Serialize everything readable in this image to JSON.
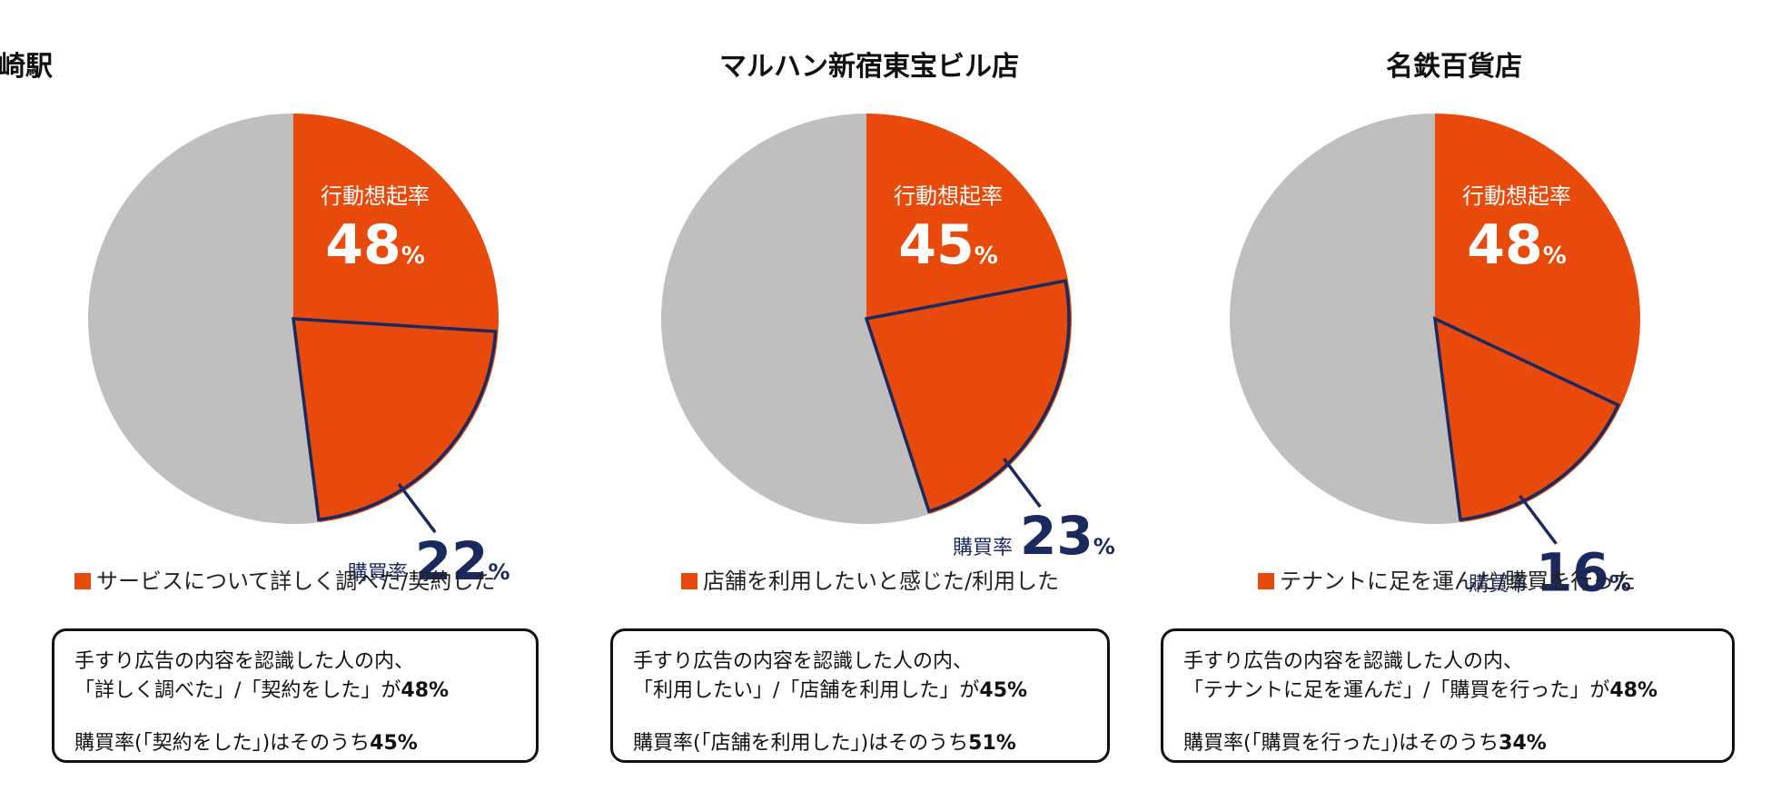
{
  "chart_data": [
    {
      "type": "pie",
      "title": "高崎駅",
      "action_rate_label": "行動想起率",
      "action_rate": 48,
      "purchase_rate_label": "購買率",
      "purchase_rate": 22,
      "unit": "%",
      "legend": "サービスについて詳しく調べた/契約した",
      "note_line1": "手すり広告の内容を認識した人の内、",
      "note_line2": "「詳しく調べた」/「契約をした」が",
      "note_value2": "48%",
      "note_line3": "購買率(「契約をした」)はそのうち",
      "note_value3": "45%"
    },
    {
      "type": "pie",
      "title": "マルハン新宿東宝ビル店",
      "action_rate_label": "行動想起率",
      "action_rate": 45,
      "purchase_rate_label": "購買率",
      "purchase_rate": 23,
      "unit": "%",
      "legend": "店舗を利用したいと感じた/利用した",
      "note_line1": "手すり広告の内容を認識した人の内、",
      "note_line2": "「利用したい」/「店舗を利用した」が",
      "note_value2": "45%",
      "note_line3": "購買率(「店舗を利用した」)はそのうち",
      "note_value3": "51%"
    },
    {
      "type": "pie",
      "title": "名鉄百貨店",
      "action_rate_label": "行動想起率",
      "action_rate": 48,
      "purchase_rate_label": "購買率",
      "purchase_rate": 16,
      "unit": "%",
      "legend": "テナントに足を運んだ/購買を行った",
      "note_line1": "手すり広告の内容を認識した人の内、",
      "note_line2": "「テナントに足を運んだ」/「購買を行った」が",
      "note_value2": "48%",
      "note_line3": "購買率(「購買を行った」)はそのうち",
      "note_value3": "34%"
    }
  ],
  "colors": {
    "action": "#e84a0c",
    "rest": "#bfbfbf",
    "purchase_outline": "#1a2a5e",
    "purchase_text": "#1a2a5e"
  }
}
